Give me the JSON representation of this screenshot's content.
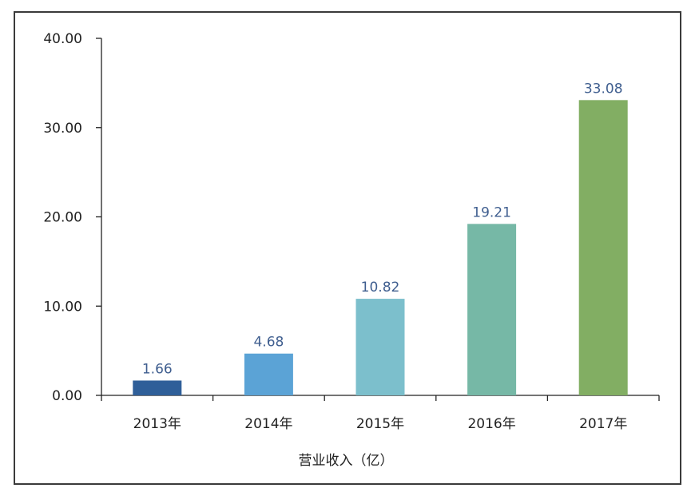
{
  "chart_data": {
    "type": "bar",
    "categories": [
      "2013年",
      "2014年",
      "2015年",
      "2016年",
      "2017年"
    ],
    "values": [
      1.66,
      4.68,
      10.82,
      19.21,
      33.08
    ],
    "value_labels": [
      "1.66",
      "4.68",
      "10.82",
      "19.21",
      "33.08"
    ],
    "bar_colors": [
      "#2f5f99",
      "#5ba3d6",
      "#7cbfcc",
      "#76b8a6",
      "#82ae63"
    ],
    "y_ticks": [
      0,
      10,
      20,
      30,
      40
    ],
    "y_tick_labels": [
      "0.00",
      "10.00",
      "20.00",
      "30.00",
      "40.00"
    ],
    "ylim": [
      0,
      40
    ],
    "xlabel": "营业收入（亿）",
    "ylabel": "",
    "title": "",
    "grid": false,
    "data_label_color": "#3f5e8f"
  }
}
